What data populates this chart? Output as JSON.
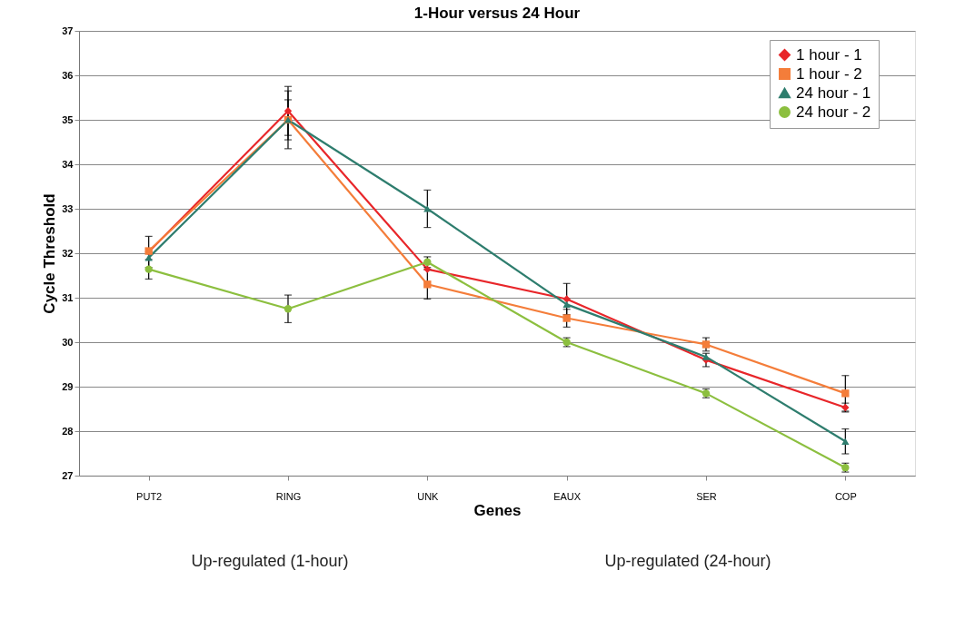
{
  "chart_data": {
    "type": "line",
    "title": "1-Hour versus 24 Hour",
    "xlabel": "Genes",
    "ylabel": "Cycle Threshold",
    "categories": [
      "PUT2",
      "RING",
      "UNK",
      "EAUX",
      "SER",
      "COP"
    ],
    "ylim": [
      27,
      37
    ],
    "yticks": [
      27,
      28,
      29,
      30,
      31,
      32,
      33,
      34,
      35,
      36,
      37
    ],
    "grid": "y",
    "legend": "top right",
    "line_style": "solid",
    "series": [
      {
        "name": "1 hour - 1",
        "color": "#e8262a",
        "marker": "diamond",
        "values": [
          32.03,
          35.2,
          31.64,
          30.97,
          29.6,
          28.53
        ],
        "errors": [
          0.35,
          0.55,
          null,
          0.35,
          0.15,
          0.1
        ]
      },
      {
        "name": "1 hour - 2",
        "color": "#f47d3a",
        "marker": "square",
        "values": [
          32.05,
          35.0,
          31.3,
          30.54,
          29.95,
          28.85
        ],
        "errors": [
          null,
          0.65,
          0.33,
          0.2,
          0.15,
          0.4
        ]
      },
      {
        "name": "24 hour - 1",
        "color": "#2e7d6e",
        "marker": "triangle",
        "values": [
          31.9,
          35.0,
          33.0,
          30.85,
          29.67,
          27.77
        ],
        "errors": [
          null,
          0.45,
          0.42,
          null,
          null,
          0.28
        ]
      },
      {
        "name": "24 hour - 2",
        "color": "#8cbf3f",
        "marker": "circle",
        "values": [
          31.64,
          30.75,
          31.8,
          30.0,
          28.85,
          27.18
        ],
        "errors": [
          0.22,
          0.31,
          0.12,
          0.1,
          0.1,
          0.1
        ]
      }
    ],
    "annotations": [
      "Up-regulated (1-hour)",
      "Up-regulated (24-hour)"
    ]
  }
}
